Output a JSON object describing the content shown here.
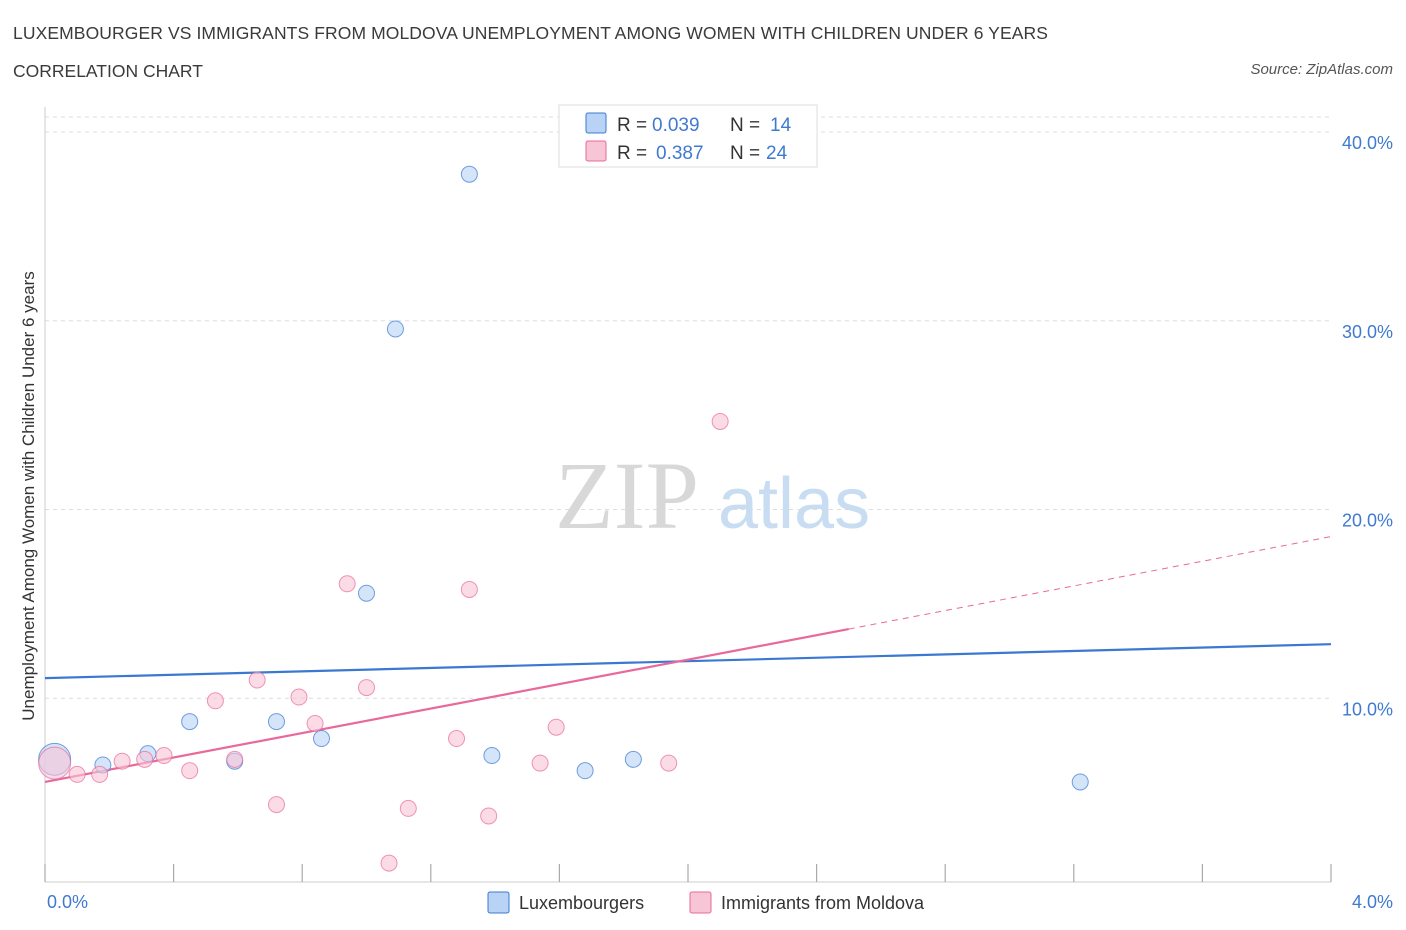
{
  "title": "LUXEMBOURGER VS IMMIGRANTS FROM MOLDOVA UNEMPLOYMENT AMONG WOMEN WITH CHILDREN UNDER 6 YEARS",
  "subtitle": "CORRELATION CHART",
  "source": "Source: ZipAtlas.com",
  "watermark": {
    "zip": "ZIP",
    "atlas": "atlas"
  },
  "colors": {
    "blue": "#3b78d1",
    "blue_fill": "#b8d3f5",
    "pink": "#e8699a",
    "pink_fill": "#f8c5d6",
    "tick": "#3f7ad0",
    "grid": "#dddddd"
  },
  "chart_data": {
    "type": "scatter",
    "title": "LUXEMBOURGER VS IMMIGRANTS FROM MOLDOVA UNEMPLOYMENT AMONG WOMEN WITH CHILDREN UNDER 6 YEARS",
    "xlabel": "",
    "ylabel": "Unemployment Among Women with Children Under 6 years",
    "xlim": [
      0,
      4.0
    ],
    "ylim": [
      0,
      40
    ],
    "x_tick_labels": [
      "0.0%",
      "4.0%"
    ],
    "y_ticks": [
      10,
      20,
      30,
      40
    ],
    "y_tick_labels": [
      "10.0%",
      "20.0%",
      "30.0%",
      "40.0%"
    ],
    "grid": true,
    "legend_position": "top-center",
    "stats": [
      {
        "series": "Luxembourgers",
        "r_label": "R =",
        "r": "0.039",
        "n_label": "N =",
        "n": "14"
      },
      {
        "series": "Immigrants from Moldova",
        "r_label": "R =",
        "r": "0.387",
        "n_label": "N =",
        "n": "24"
      }
    ],
    "series": [
      {
        "name": "Luxembourgers",
        "color": "#3b78d1",
        "points": [
          {
            "x": 0.03,
            "y": 6.5,
            "big": true
          },
          {
            "x": 0.18,
            "y": 6.2
          },
          {
            "x": 0.32,
            "y": 6.8
          },
          {
            "x": 0.45,
            "y": 8.5
          },
          {
            "x": 0.59,
            "y": 6.4
          },
          {
            "x": 0.72,
            "y": 8.5
          },
          {
            "x": 0.86,
            "y": 7.6
          },
          {
            "x": 1.0,
            "y": 15.3
          },
          {
            "x": 1.09,
            "y": 29.3
          },
          {
            "x": 1.32,
            "y": 37.5
          },
          {
            "x": 1.39,
            "y": 6.7
          },
          {
            "x": 1.68,
            "y": 5.9
          },
          {
            "x": 1.83,
            "y": 6.5
          },
          {
            "x": 3.22,
            "y": 5.3
          }
        ],
        "trend": {
          "x1": 0.0,
          "y1": 10.8,
          "x2": 4.0,
          "y2": 12.6,
          "dashed_to": null
        }
      },
      {
        "name": "Immigrants from Moldova",
        "color": "#e8699a",
        "points": [
          {
            "x": 0.03,
            "y": 6.3,
            "big": true
          },
          {
            "x": 0.1,
            "y": 5.7
          },
          {
            "x": 0.17,
            "y": 5.7
          },
          {
            "x": 0.24,
            "y": 6.4
          },
          {
            "x": 0.31,
            "y": 6.5
          },
          {
            "x": 0.37,
            "y": 6.7
          },
          {
            "x": 0.45,
            "y": 5.9
          },
          {
            "x": 0.53,
            "y": 9.6
          },
          {
            "x": 0.59,
            "y": 6.5
          },
          {
            "x": 0.66,
            "y": 10.7
          },
          {
            "x": 0.72,
            "y": 4.1
          },
          {
            "x": 0.79,
            "y": 9.8
          },
          {
            "x": 0.84,
            "y": 8.4
          },
          {
            "x": 0.94,
            "y": 15.8
          },
          {
            "x": 1.0,
            "y": 10.3
          },
          {
            "x": 1.07,
            "y": 1.0
          },
          {
            "x": 1.13,
            "y": 3.9
          },
          {
            "x": 1.28,
            "y": 7.6
          },
          {
            "x": 1.32,
            "y": 15.5
          },
          {
            "x": 1.38,
            "y": 3.5
          },
          {
            "x": 1.54,
            "y": 6.3
          },
          {
            "x": 1.59,
            "y": 8.2
          },
          {
            "x": 1.94,
            "y": 6.3
          },
          {
            "x": 2.1,
            "y": 24.4
          }
        ],
        "trend": {
          "x1": 0.0,
          "y1": 5.3,
          "x2": 2.5,
          "y2": 13.4,
          "dashed_to": {
            "x": 4.0,
            "y": 18.3
          }
        }
      }
    ]
  },
  "legend": {
    "items": [
      {
        "label": "Luxembourgers"
      },
      {
        "label": "Immigrants from Moldova"
      }
    ]
  }
}
